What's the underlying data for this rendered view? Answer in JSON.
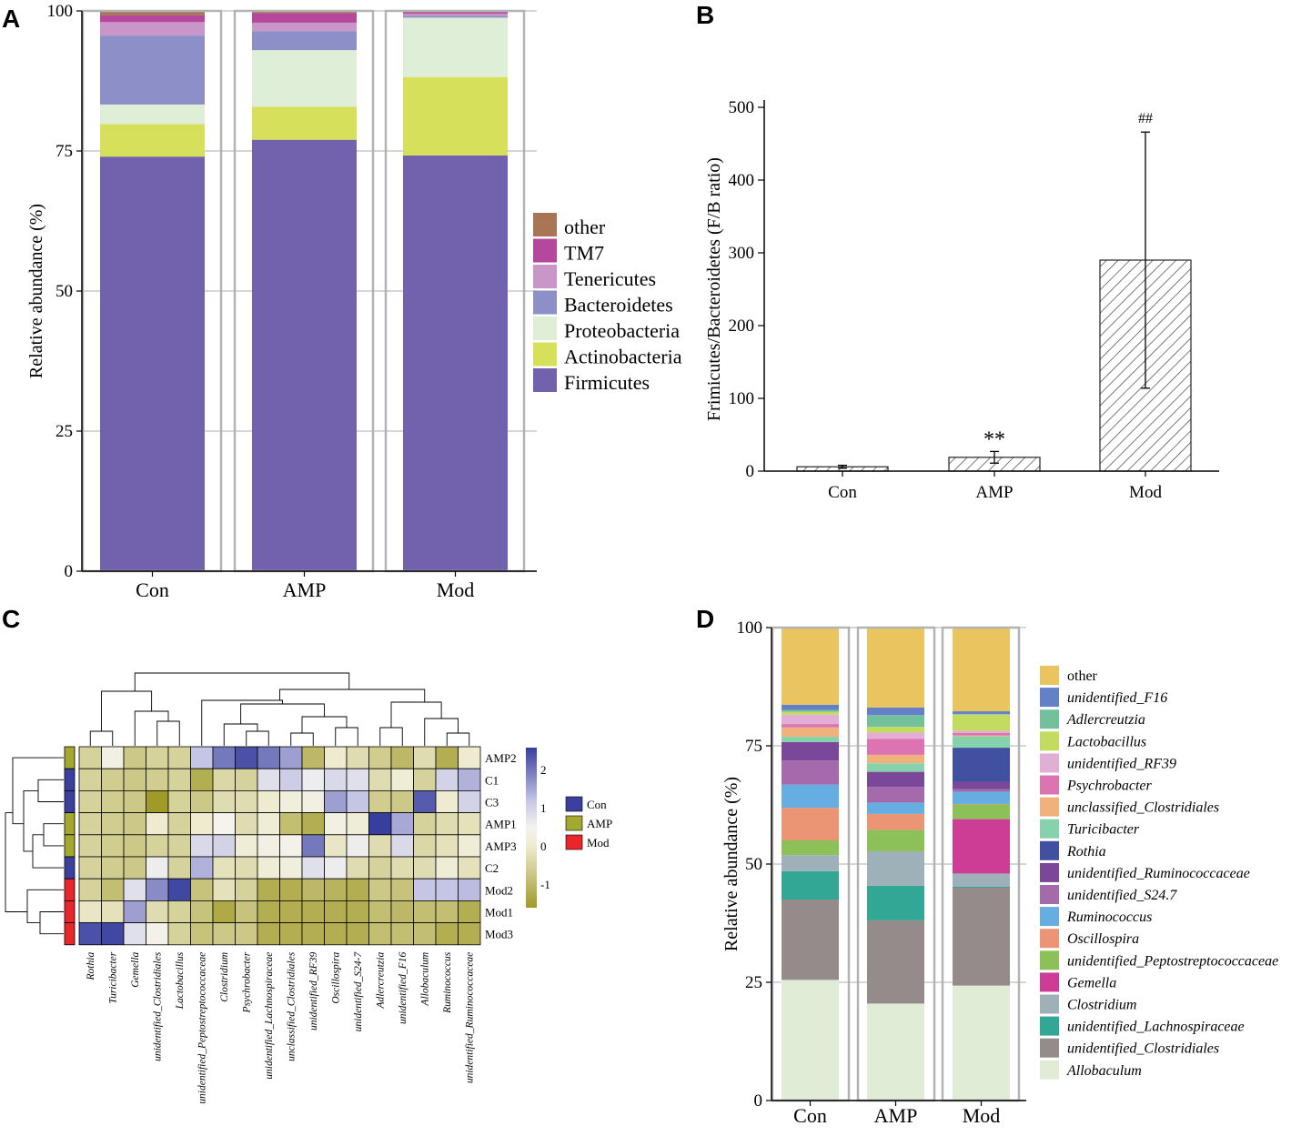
{
  "panels": {
    "A": "A",
    "B": "B",
    "C": "C",
    "D": "D"
  },
  "chart_data": [
    {
      "id": "A",
      "type": "bar",
      "stacked": true,
      "title": "",
      "xlabel": "",
      "ylabel": "Relative abundance (%)",
      "ylim": [
        0,
        100
      ],
      "yticks": [
        "0",
        "25",
        "50",
        "75",
        "100"
      ],
      "categories": [
        "Con",
        "AMP",
        "Mod"
      ],
      "series": [
        {
          "name": "Firmicutes",
          "color": "#7261ad",
          "values": [
            74.0,
            77.0,
            74.2
          ]
        },
        {
          "name": "Actinobacteria",
          "color": "#d7e05a",
          "values": [
            5.8,
            5.9,
            14.0
          ]
        },
        {
          "name": "Proteobacteria",
          "color": "#dfeed6",
          "values": [
            3.5,
            10.1,
            10.6
          ]
        },
        {
          "name": "Bacteroidetes",
          "color": "#8c8fc8",
          "values": [
            12.3,
            3.4,
            0.3
          ]
        },
        {
          "name": "Tenericutes",
          "color": "#c896c9",
          "values": [
            2.4,
            1.5,
            0.4
          ]
        },
        {
          "name": "TM7",
          "color": "#b5489c",
          "values": [
            1.2,
            1.7,
            0.3
          ]
        },
        {
          "name": "other",
          "color": "#a87657",
          "values": [
            0.8,
            0.4,
            0.2
          ]
        }
      ],
      "legend_order": [
        "other",
        "TM7",
        "Tenericutes",
        "Bacteroidetes",
        "Proteobacteria",
        "Actinobacteria",
        "Firmicutes"
      ]
    },
    {
      "id": "B",
      "type": "bar",
      "title": "",
      "xlabel": "",
      "ylabel": "Frimicutes/Bacteroidetes (F/B ratio)",
      "ylim": [
        0,
        500
      ],
      "yticks": [
        "0",
        "100",
        "200",
        "300",
        "400",
        "500"
      ],
      "categories": [
        "Con",
        "AMP",
        "Mod"
      ],
      "values": [
        6,
        19,
        290
      ],
      "errors": [
        2,
        8,
        176
      ],
      "annotations": [
        "",
        "**",
        "##"
      ]
    },
    {
      "id": "C",
      "type": "heatmap",
      "rows": [
        "AMP2",
        "C1",
        "C3",
        "AMP1",
        "AMP3",
        "C2",
        "Mod2",
        "Mod1",
        "Mod3"
      ],
      "row_groups": [
        "AMP",
        "Con",
        "Con",
        "AMP",
        "AMP",
        "Con",
        "Mod",
        "Mod",
        "Mod"
      ],
      "columns": [
        "Rothia",
        "Turicibacter",
        "Gemella",
        "unidentified_Clostridiales",
        "Lactobacillus",
        "unidentified_Peptostreptococcaceae",
        "Clostridium",
        "Psychrobacter",
        "unidentified_Lachnospiraceae",
        "unclassified_Clostridiales",
        "unidentified_RF39",
        "Oscillospira",
        "unidentified_S24-7",
        "Adlercreutzia",
        "unidentified_F16",
        "Allobaculum",
        "Ruminococcus",
        "unidentified_Ruminococcaceae"
      ],
      "values": [
        [
          -0.5,
          0.3,
          -0.7,
          -0.5,
          -0.5,
          1.2,
          2.0,
          2.4,
          2.0,
          1.6,
          -1.0,
          0.0,
          -0.3,
          -0.6,
          -1.0,
          -0.3,
          -1.2,
          0.0
        ],
        [
          -0.5,
          -0.6,
          -0.7,
          -0.6,
          -0.5,
          -1.2,
          -0.4,
          -0.5,
          0.8,
          1.1,
          0.6,
          0.9,
          0.8,
          -0.3,
          0.1,
          -0.5,
          1.0,
          1.4
        ],
        [
          -0.5,
          -0.6,
          -0.7,
          -1.6,
          -0.5,
          -0.7,
          -0.3,
          -0.3,
          0.0,
          0.2,
          0.3,
          1.6,
          1.2,
          -0.6,
          -0.7,
          2.3,
          0.0,
          1.0
        ],
        [
          -0.5,
          -0.6,
          -0.7,
          0.0,
          -0.5,
          0.0,
          0.5,
          -0.3,
          0.1,
          -0.9,
          -1.2,
          0.3,
          0.1,
          2.6,
          1.5,
          -0.5,
          -0.3,
          -0.2
        ],
        [
          -0.5,
          -0.6,
          -0.7,
          -0.5,
          -0.5,
          0.9,
          1.0,
          0.1,
          0.3,
          0.4,
          2.0,
          -0.1,
          0.6,
          -0.3,
          0.9,
          -0.4,
          -0.2,
          0.1
        ],
        [
          -0.5,
          -0.6,
          -0.7,
          0.6,
          -0.5,
          1.4,
          -0.2,
          -0.3,
          0.1,
          0.2,
          0.8,
          0.6,
          -0.3,
          -0.5,
          -0.3,
          -0.3,
          0.1,
          -0.2
        ],
        [
          -0.5,
          -0.9,
          0.8,
          1.8,
          2.5,
          -0.8,
          -0.2,
          -0.5,
          -1.2,
          -1.2,
          -1.0,
          -1.1,
          -1.2,
          -0.7,
          -0.8,
          1.2,
          1.2,
          1.3
        ],
        [
          -0.1,
          -0.2,
          1.6,
          -0.3,
          -0.5,
          -0.8,
          -1.3,
          -0.8,
          -1.2,
          -1.2,
          -1.2,
          -1.2,
          -1.2,
          -0.9,
          -1.0,
          -0.9,
          -0.9,
          -1.2
        ],
        [
          2.4,
          2.5,
          0.8,
          0.4,
          -0.5,
          -0.8,
          -0.7,
          -0.7,
          -1.2,
          -1.2,
          -1.2,
          -1.2,
          -1.2,
          -0.9,
          -0.9,
          -0.9,
          -1.2,
          -1.2
        ]
      ],
      "colorbar_ticks": [
        "2",
        "1",
        "0",
        "-1"
      ],
      "colorbar_range": [
        -1.6,
        2.6
      ],
      "legend": [
        {
          "name": "Con",
          "color": "#3b3f9e"
        },
        {
          "name": "AMP",
          "color": "#a5a82f"
        },
        {
          "name": "Mod",
          "color": "#e8262b"
        }
      ]
    },
    {
      "id": "D",
      "type": "bar",
      "stacked": true,
      "title": "",
      "xlabel": "",
      "ylabel": "Relative abundance (%)",
      "ylim": [
        0,
        100
      ],
      "yticks": [
        "0",
        "25",
        "50",
        "75",
        "100"
      ],
      "categories": [
        "Con",
        "AMP",
        "Mod"
      ],
      "series": [
        {
          "name": "Allobaculum",
          "color": "#e1ecd7",
          "values": [
            25.5,
            20.5,
            24.3
          ]
        },
        {
          "name": "unidentified_Clostridiales",
          "color": "#968b8b",
          "values": [
            17.0,
            17.6,
            20.7
          ]
        },
        {
          "name": "unidentified_Lachnospiraceae",
          "color": "#33a795",
          "values": [
            6.0,
            7.3,
            0.2
          ]
        },
        {
          "name": "Clostridium",
          "color": "#9fb1b8",
          "values": [
            3.4,
            7.3,
            2.8
          ]
        },
        {
          "name": "Gemella",
          "color": "#cd3c95",
          "values": [
            0.0,
            0.0,
            11.5
          ]
        },
        {
          "name": "unidentified_Peptostreptococcaceae",
          "color": "#8cc15a",
          "values": [
            3.1,
            4.5,
            3.1
          ]
        },
        {
          "name": "Oscillospira",
          "color": "#ec9574",
          "values": [
            6.9,
            3.4,
            0.1
          ]
        },
        {
          "name": "Ruminococcus",
          "color": "#66ade1",
          "values": [
            4.9,
            2.4,
            2.6
          ]
        },
        {
          "name": "unidentified_S24.7",
          "color": "#a56aac",
          "values": [
            5.1,
            3.3,
            0.5
          ]
        },
        {
          "name": "unidentified_Ruminococcaceae",
          "color": "#7b4899",
          "values": [
            3.9,
            3.2,
            1.6
          ]
        },
        {
          "name": "Rothia",
          "color": "#4150a0",
          "values": [
            0.0,
            0.0,
            7.2
          ]
        },
        {
          "name": "Turicibacter",
          "color": "#85d2ad",
          "values": [
            1.1,
            1.8,
            2.4
          ]
        },
        {
          "name": "unclassified_Clostridiales",
          "color": "#efb27c",
          "values": [
            2.0,
            1.8,
            0.2
          ]
        },
        {
          "name": "Psychrobacter",
          "color": "#dc74b2",
          "values": [
            0.7,
            3.4,
            0.5
          ]
        },
        {
          "name": "unidentified_RF39",
          "color": "#e3aed5",
          "values": [
            2.0,
            1.3,
            0.5
          ]
        },
        {
          "name": "Lactobacillus",
          "color": "#c3dc60",
          "values": [
            0.6,
            1.2,
            3.4
          ]
        },
        {
          "name": "Adlercreutzia",
          "color": "#72c09c",
          "values": [
            0.4,
            2.5,
            0.1
          ]
        },
        {
          "name": "unidentified_F16",
          "color": "#6480c6",
          "values": [
            1.1,
            1.6,
            0.6
          ]
        },
        {
          "name": "other",
          "color": "#e9c45f",
          "values": [
            16.3,
            17.1,
            17.7
          ]
        }
      ],
      "legend_order": [
        "other",
        "unidentified_F16",
        "Adlercreutzia",
        "Lactobacillus",
        "unidentified_RF39",
        "Psychrobacter",
        "unclassified_Clostridiales",
        "Turicibacter",
        "Rothia",
        "unidentified_Ruminococcaceae",
        "unidentified_S24.7",
        "Ruminococcus",
        "Oscillospira",
        "unidentified_Peptostreptococcaceae",
        "Gemella",
        "Clostridium",
        "unidentified_Lachnospiraceae",
        "unidentified_Clostridiales",
        "Allobaculum"
      ],
      "legend_italic_exclude": [
        "other"
      ]
    }
  ]
}
